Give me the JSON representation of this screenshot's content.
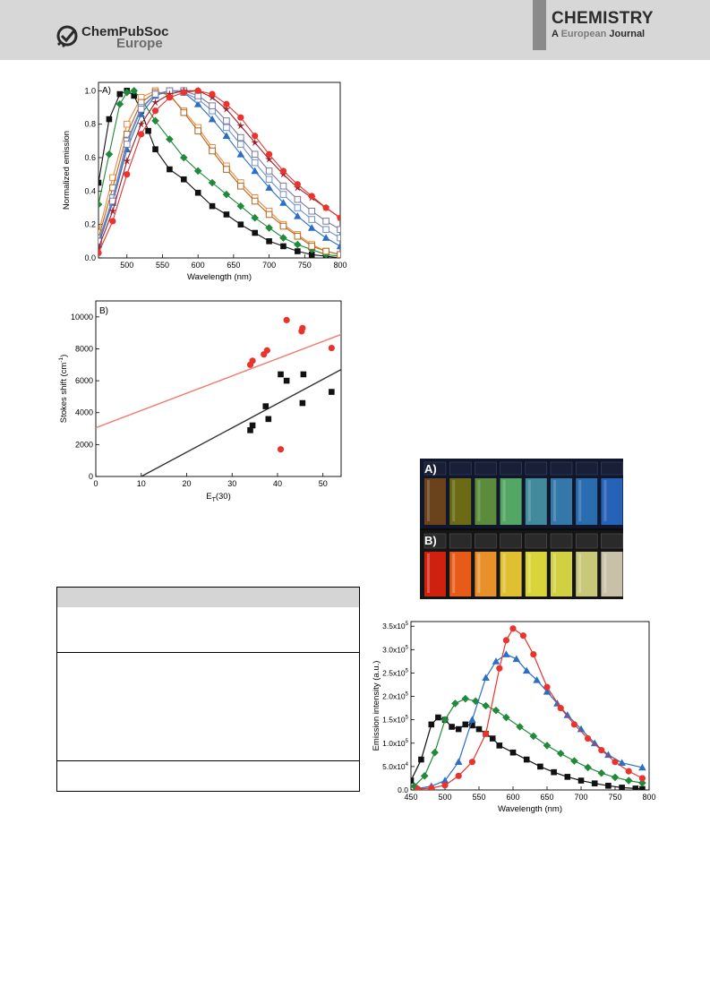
{
  "header": {
    "publisher_name": "ChemPubSoc",
    "publisher_sub": "Europe",
    "journal_title": "CHEMISTRY",
    "journal_sub_a": "A ",
    "journal_sub_b": "European",
    "journal_sub_c": " Journal"
  },
  "colors": {
    "header_band": "#d7d7d7",
    "black": "#111111",
    "green": "#1f8a3a",
    "blue": "#2a6fc4",
    "red": "#e8342c",
    "darkred": "#9a1e2a",
    "orange": "#f08a3a",
    "brownish": "#b5651d",
    "light_blue": "#6d8fcf",
    "gray": "#7a7aa0",
    "fit_red": "#f07a6e",
    "fit_black": "#333333"
  },
  "chart_data": [
    {
      "id": "A",
      "type": "line",
      "panel_label": "A)",
      "xlabel": "Wavelength (nm)",
      "ylabel": "Normalized emission",
      "xlim": [
        460,
        800
      ],
      "ylim": [
        0,
        1.05
      ],
      "xticks": [
        500,
        550,
        600,
        650,
        700,
        750,
        800
      ],
      "yticks": [
        0.0,
        0.2,
        0.4,
        0.6,
        0.8,
        1.0
      ],
      "series": [
        {
          "color": "black",
          "marker": "square",
          "peak": 500,
          "x": [
            460,
            475,
            490,
            500,
            510,
            520,
            530,
            540,
            560,
            580,
            600,
            620,
            640,
            660,
            680,
            700,
            720,
            740,
            760,
            780,
            800
          ],
          "y": [
            0.45,
            0.83,
            0.98,
            1.0,
            0.97,
            0.88,
            0.76,
            0.65,
            0.53,
            0.47,
            0.39,
            0.31,
            0.26,
            0.2,
            0.15,
            0.1,
            0.07,
            0.04,
            0.02,
            0.01,
            0.0
          ]
        },
        {
          "color": "green",
          "marker": "diamond",
          "peak": 510,
          "x": [
            460,
            475,
            490,
            500,
            510,
            520,
            540,
            560,
            580,
            600,
            620,
            640,
            660,
            680,
            700,
            720,
            740,
            760,
            780,
            800
          ],
          "y": [
            0.32,
            0.62,
            0.92,
            0.99,
            1.0,
            0.95,
            0.82,
            0.71,
            0.6,
            0.52,
            0.45,
            0.38,
            0.31,
            0.24,
            0.18,
            0.12,
            0.08,
            0.05,
            0.02,
            0.01
          ]
        },
        {
          "color": "orange",
          "marker": "open-square",
          "peak": 545,
          "x": [
            460,
            480,
            500,
            520,
            540,
            560,
            580,
            600,
            620,
            640,
            660,
            680,
            700,
            720,
            740,
            760,
            780,
            800
          ],
          "y": [
            0.15,
            0.48,
            0.8,
            0.96,
            1.0,
            0.97,
            0.88,
            0.78,
            0.66,
            0.55,
            0.45,
            0.36,
            0.28,
            0.2,
            0.14,
            0.08,
            0.04,
            0.02
          ]
        },
        {
          "color": "brownish",
          "marker": "open-square",
          "peak": 550,
          "x": [
            460,
            480,
            500,
            520,
            540,
            560,
            580,
            600,
            620,
            640,
            660,
            680,
            700,
            720,
            740,
            760,
            780,
            800
          ],
          "y": [
            0.12,
            0.42,
            0.74,
            0.93,
            0.99,
            0.98,
            0.87,
            0.76,
            0.64,
            0.53,
            0.43,
            0.34,
            0.26,
            0.19,
            0.13,
            0.07,
            0.04,
            0.02
          ]
        },
        {
          "color": "blue",
          "marker": "triangle",
          "peak": 570,
          "x": [
            460,
            480,
            500,
            520,
            540,
            560,
            580,
            600,
            620,
            640,
            660,
            680,
            700,
            720,
            740,
            760,
            780,
            800
          ],
          "y": [
            0.08,
            0.33,
            0.65,
            0.86,
            0.97,
            1.0,
            0.99,
            0.92,
            0.83,
            0.73,
            0.62,
            0.52,
            0.42,
            0.33,
            0.25,
            0.18,
            0.12,
            0.07
          ]
        },
        {
          "color": "light_blue",
          "marker": "open-square",
          "peak": 575,
          "x": [
            460,
            480,
            500,
            520,
            540,
            560,
            580,
            600,
            620,
            640,
            660,
            680,
            700,
            720,
            740,
            760,
            780,
            800
          ],
          "y": [
            0.1,
            0.36,
            0.7,
            0.9,
            0.98,
            1.0,
            0.99,
            0.95,
            0.88,
            0.78,
            0.68,
            0.57,
            0.47,
            0.38,
            0.3,
            0.23,
            0.17,
            0.12
          ]
        },
        {
          "color": "gray",
          "marker": "open-square",
          "peak": 580,
          "x": [
            460,
            480,
            500,
            520,
            540,
            560,
            580,
            600,
            620,
            640,
            660,
            680,
            700,
            720,
            740,
            760,
            780,
            800
          ],
          "y": [
            0.1,
            0.34,
            0.68,
            0.89,
            0.98,
            1.0,
            1.0,
            0.97,
            0.91,
            0.82,
            0.72,
            0.62,
            0.52,
            0.43,
            0.35,
            0.28,
            0.22,
            0.17
          ]
        },
        {
          "color": "darkred",
          "marker": "star",
          "peak": 605,
          "x": [
            460,
            480,
            500,
            520,
            540,
            560,
            580,
            600,
            620,
            640,
            660,
            680,
            700,
            720,
            740,
            760,
            780,
            800
          ],
          "y": [
            0.06,
            0.28,
            0.58,
            0.8,
            0.93,
            0.98,
            1.0,
            1.0,
            0.96,
            0.89,
            0.79,
            0.69,
            0.59,
            0.5,
            0.42,
            0.36,
            0.3,
            0.24
          ]
        },
        {
          "color": "red",
          "marker": "circle",
          "peak": 615,
          "x": [
            460,
            480,
            500,
            520,
            540,
            560,
            580,
            600,
            620,
            640,
            660,
            680,
            700,
            720,
            740,
            760,
            780,
            800
          ],
          "y": [
            0.03,
            0.22,
            0.5,
            0.74,
            0.88,
            0.96,
            0.99,
            1.0,
            0.98,
            0.92,
            0.84,
            0.73,
            0.62,
            0.52,
            0.44,
            0.37,
            0.3,
            0.24
          ]
        }
      ]
    },
    {
      "id": "B",
      "type": "scatter",
      "panel_label": "B)",
      "xlabel": "E",
      "xlabel_sub": "T",
      "xlabel_tail": "(30)",
      "ylabel": "Stokes shift (cm",
      "ylabel_sup": "-1",
      "ylabel_tail": ")",
      "xlim": [
        0,
        54
      ],
      "ylim": [
        0,
        11000
      ],
      "xticks": [
        0,
        10,
        20,
        30,
        40,
        50
      ],
      "yticks": [
        0,
        2000,
        4000,
        6000,
        8000,
        10000
      ],
      "series": [
        {
          "color": "red",
          "marker": "circle",
          "x": [
            34.0,
            34.5,
            37.0,
            37.7,
            40.7,
            42.0,
            45.3,
            45.5,
            51.9
          ],
          "y": [
            7000,
            7250,
            7650,
            7900,
            1700,
            9800,
            9100,
            9300,
            8050
          ]
        },
        {
          "color": "black",
          "marker": "square",
          "x": [
            34.0,
            34.5,
            37.4,
            38.0,
            40.7,
            42.0,
            45.5,
            45.7,
            51.9
          ],
          "y": [
            2900,
            3200,
            4400,
            3600,
            6400,
            6000,
            4600,
            6400,
            5300
          ]
        }
      ],
      "fits": [
        {
          "color": "fit_red",
          "x": [
            0,
            54
          ],
          "y": [
            3050,
            8900
          ]
        },
        {
          "color": "fit_black",
          "x": [
            10,
            54
          ],
          "y": [
            0,
            6700
          ]
        }
      ]
    },
    {
      "id": "C",
      "type": "line",
      "xlabel": "Wavelength (nm)",
      "ylabel": "Emission intensity (a.u.)",
      "xlim": [
        450,
        800
      ],
      "ylim": [
        0,
        360000
      ],
      "xticks": [
        450,
        500,
        550,
        600,
        650,
        700,
        750,
        800
      ],
      "yticks": [
        0,
        50000,
        100000,
        150000,
        200000,
        250000,
        300000,
        350000
      ],
      "ytick_labels": [
        {
          "m": "0.0"
        },
        {
          "m": "5.0x10",
          "e": "4"
        },
        {
          "m": "1.0x10",
          "e": "5"
        },
        {
          "m": "1.5x10",
          "e": "5"
        },
        {
          "m": "2.0x10",
          "e": "5"
        },
        {
          "m": "2.5x10",
          "e": "5"
        },
        {
          "m": "3.0x10",
          "e": "5"
        },
        {
          "m": "3.5x10",
          "e": "5"
        }
      ],
      "series": [
        {
          "color": "black",
          "marker": "square",
          "x": [
            450,
            465,
            480,
            490,
            500,
            510,
            520,
            530,
            540,
            550,
            560,
            570,
            580,
            600,
            620,
            640,
            660,
            680,
            700,
            720,
            740,
            760,
            780,
            790
          ],
          "y": [
            20000,
            65000,
            140000,
            155000,
            150000,
            135000,
            130000,
            140000,
            138000,
            130000,
            120000,
            110000,
            95000,
            80000,
            65000,
            50000,
            38000,
            28000,
            20000,
            14000,
            9000,
            5000,
            3000,
            2000
          ]
        },
        {
          "color": "green",
          "marker": "diamond",
          "x": [
            455,
            470,
            485,
            500,
            515,
            530,
            545,
            560,
            575,
            590,
            610,
            630,
            650,
            670,
            690,
            710,
            730,
            750,
            770,
            790
          ],
          "y": [
            8000,
            30000,
            80000,
            150000,
            185000,
            195000,
            190000,
            180000,
            170000,
            155000,
            135000,
            115000,
            95000,
            78000,
            62000,
            48000,
            36000,
            27000,
            20000,
            15000
          ]
        },
        {
          "color": "blue",
          "marker": "triangle",
          "x": [
            460,
            480,
            500,
            520,
            540,
            560,
            575,
            590,
            605,
            620,
            635,
            650,
            665,
            680,
            700,
            720,
            740,
            760,
            790
          ],
          "y": [
            3000,
            8000,
            20000,
            60000,
            150000,
            240000,
            275000,
            290000,
            280000,
            255000,
            235000,
            210000,
            185000,
            160000,
            130000,
            100000,
            75000,
            58000,
            48000
          ]
        },
        {
          "color": "red",
          "marker": "circle",
          "x": [
            460,
            480,
            500,
            520,
            540,
            560,
            580,
            590,
            600,
            615,
            630,
            650,
            670,
            690,
            710,
            730,
            750,
            770,
            790
          ],
          "y": [
            2000,
            4000,
            10000,
            30000,
            60000,
            120000,
            260000,
            320000,
            345000,
            330000,
            290000,
            220000,
            175000,
            140000,
            110000,
            85000,
            60000,
            40000,
            25000
          ]
        }
      ]
    }
  ],
  "photo": {
    "label_a": "A)",
    "label_b": "B)",
    "vials_a_colors": [
      "#7a4a1a",
      "#7a7a10",
      "#6aa040",
      "#60c070",
      "#4aa0b0",
      "#3a8ac0",
      "#2e7bc8",
      "#2a70d0"
    ],
    "vials_b_colors": [
      "#d0200e",
      "#e85a18",
      "#e8902a",
      "#e0c030",
      "#d8d43a",
      "#d0d040",
      "#c8c878",
      "#c8c0a8"
    ]
  }
}
